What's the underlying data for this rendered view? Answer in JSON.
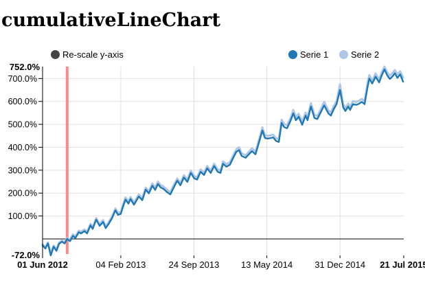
{
  "header": {
    "title": "cumulativeLineChart"
  },
  "controls": {
    "rescale_label": "Re-scale y-axis",
    "rescale_dot_color": "#444444"
  },
  "legend": {
    "items": [
      {
        "label": "Serie 1",
        "color": "#1f77b4"
      },
      {
        "label": "Serie 2",
        "color": "#aec7e8"
      }
    ]
  },
  "chart_data": {
    "type": "line",
    "title": "cumulativeLineChart",
    "x_start_date": "01 Jun 2012",
    "x_end_date": "21 Jul 2015",
    "x_unit": "days_since_start",
    "x_domain_days": [
      0,
      1145
    ],
    "ylim": [
      -72,
      752
    ],
    "y_tick_format": "percent",
    "y_ticks": [
      100,
      200,
      300,
      400,
      500,
      600,
      700
    ],
    "y_max_label": "752.0%",
    "y_min_label": "-72.0%",
    "grid": true,
    "legend_position": "top-right",
    "zero_line": 0,
    "index_line_day": 78,
    "index_line_color": "#f98b8b",
    "grid_color": "#e0e0e0",
    "axis_color": "#000000",
    "x_ticks": [
      {
        "day": 0,
        "label": "01 Jun 2012",
        "bold": true
      },
      {
        "day": 248,
        "label": "04 Feb 2013",
        "bold": false
      },
      {
        "day": 480,
        "label": "24 Sep 2013",
        "bold": false
      },
      {
        "day": 711,
        "label": "13 May 2014",
        "bold": false
      },
      {
        "day": 943,
        "label": "31 Dec 2014",
        "bold": false
      },
      {
        "day": 1145,
        "label": "21 Jul 2015",
        "bold": true
      }
    ],
    "days": [
      0,
      9,
      17,
      26,
      35,
      44,
      52,
      61,
      70,
      78,
      87,
      96,
      104,
      115,
      122,
      133,
      141,
      152,
      159,
      170,
      181,
      192,
      200,
      209,
      220,
      231,
      239,
      248,
      255,
      263,
      272,
      279,
      290,
      305,
      316,
      327,
      337,
      348,
      357,
      366,
      374,
      383,
      394,
      405,
      416,
      427,
      437,
      448,
      459,
      470,
      481,
      490,
      501,
      512,
      522,
      533,
      544,
      555,
      564,
      572,
      583,
      594,
      605,
      614,
      623,
      631,
      638,
      644,
      653,
      664,
      675,
      686,
      697,
      705,
      714,
      723,
      731,
      740,
      749,
      758,
      766,
      775,
      786,
      795,
      803,
      812,
      823,
      834,
      840,
      851,
      862,
      871,
      882,
      893,
      906,
      914,
      923,
      932,
      943,
      953,
      960,
      969,
      975,
      984,
      995,
      1003,
      1012,
      1021,
      1030,
      1036,
      1045,
      1056,
      1067,
      1075,
      1084,
      1093,
      1101,
      1110,
      1117,
      1125,
      1134,
      1143
    ],
    "series": [
      {
        "name": "Serie 1",
        "color": "#1f77b4",
        "values": [
          -28,
          -42,
          -20,
          -72,
          -34,
          -52,
          -22,
          -12,
          -20,
          0,
          -10,
          13,
          4,
          29,
          24,
          34,
          24,
          59,
          44,
          84,
          57,
          74,
          47,
          64,
          90,
          125,
          105,
          109,
          140,
          172,
          154,
          174,
          149,
          185,
          169,
          215,
          199,
          232,
          214,
          240,
          225,
          219,
          205,
          194,
          225,
          254,
          234,
          268,
          249,
          288,
          264,
          259,
          293,
          279,
          308,
          288,
          318,
          293,
          288,
          328,
          315,
          324,
          355,
          380,
          388,
          362,
          358,
          354,
          368,
          383,
          369,
          420,
          473,
          440,
          438,
          440,
          443,
          428,
          423,
          506,
          488,
          483,
          515,
          548,
          518,
          533,
          498,
          538,
          518,
          578,
          528,
          523,
          553,
          583,
          548,
          538,
          566,
          588,
          650,
          575,
          558,
          578,
          563,
          588,
          585,
          590,
          598,
          588,
          660,
          700,
          678,
          708,
          683,
          712,
          740,
          713,
          698,
          710,
          723,
          703,
          718,
          686
        ]
      },
      {
        "name": "Serie 2",
        "color": "#aec7e8",
        "values": [
          -23,
          -37,
          -15,
          -62,
          -29,
          -46,
          -17,
          -7,
          -15,
          4,
          -3,
          20,
          11,
          36,
          31,
          41,
          31,
          66,
          51,
          91,
          65,
          82,
          55,
          72,
          98,
          133,
          113,
          117,
          149,
          181,
          163,
          183,
          158,
          194,
          178,
          224,
          208,
          242,
          224,
          250,
          235,
          229,
          215,
          204,
          235,
          264,
          244,
          278,
          259,
          298,
          274,
          269,
          303,
          289,
          318,
          298,
          328,
          303,
          298,
          338,
          326,
          335,
          366,
          391,
          400,
          373,
          369,
          365,
          379,
          395,
          381,
          432,
          487,
          452,
          450,
          452,
          455,
          440,
          435,
          520,
          501,
          496,
          528,
          563,
          531,
          546,
          511,
          551,
          531,
          593,
          541,
          536,
          566,
          598,
          561,
          551,
          579,
          601,
          675,
          588,
          571,
          591,
          576,
          601,
          598,
          603,
          611,
          601,
          680,
          715,
          692,
          722,
          696,
          726,
          752,
          727,
          712,
          724,
          737,
          717,
          732,
          704
        ]
      }
    ]
  }
}
